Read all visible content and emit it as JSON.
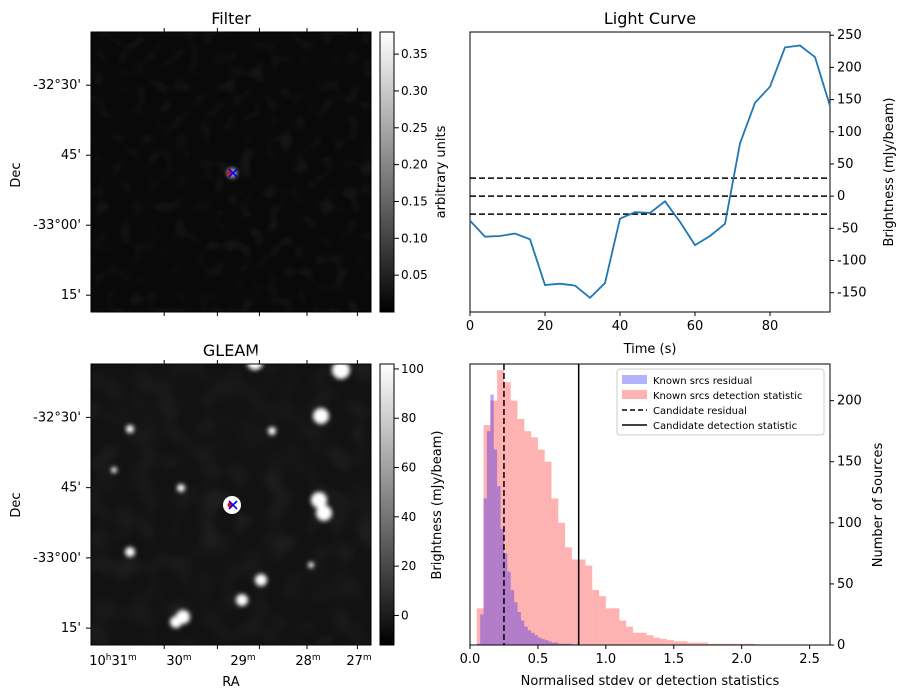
{
  "chart_data": [
    {
      "type": "heatmap",
      "title": "Filter",
      "ylabel": "Dec",
      "xlabel": "",
      "dec_ticks": [
        "-32°30'",
        "45'",
        "-33°00'",
        "15'"
      ],
      "colorbar": {
        "label": "arbitrary units",
        "ticks": [
          0.05,
          0.1,
          0.15,
          0.2,
          0.25,
          0.3,
          0.35
        ],
        "tick_labels": [
          "0.05",
          "0.10",
          "0.15",
          "0.20",
          "0.25",
          "0.30",
          "0.35"
        ],
        "range": [
          0.0,
          0.38
        ]
      },
      "markers": [
        "red-dot",
        "blue-x"
      ]
    },
    {
      "type": "line",
      "title": "Light Curve",
      "xlabel": "Time (s)",
      "ylabel": "Brightness (mJy/beam)",
      "xlim": [
        0,
        96
      ],
      "ylim": [
        -180,
        255
      ],
      "xticks": [
        0,
        20,
        40,
        60,
        80
      ],
      "yticks": [
        -150,
        -100,
        -50,
        0,
        50,
        100,
        150,
        200,
        250
      ],
      "series": [
        {
          "x": [
            0,
            4,
            8,
            12,
            16,
            20,
            24,
            28,
            32,
            36,
            40,
            44,
            48,
            52,
            56,
            60,
            64,
            68,
            72,
            76,
            80,
            84,
            88,
            92,
            96
          ],
          "y": [
            -38,
            -63,
            -62,
            -58,
            -67,
            -138,
            -136,
            -139,
            -158,
            -135,
            -35,
            -25,
            -26,
            -8,
            -40,
            -76,
            -62,
            -43,
            82,
            145,
            170,
            231,
            234,
            216,
            140
          ],
          "color": "#1f77b4"
        }
      ],
      "hlines": [
        28,
        0,
        -28
      ]
    },
    {
      "type": "heatmap",
      "title": "GLEAM",
      "ylabel": "Dec",
      "xlabel": "RA",
      "dec_ticks": [
        "-32°30'",
        "45'",
        "-33°00'",
        "15'"
      ],
      "ra_ticks": [
        {
          "h": "10",
          "m": "31"
        },
        {
          "h": "",
          "m": "30"
        },
        {
          "h": "",
          "m": "29"
        },
        {
          "h": "",
          "m": "28"
        },
        {
          "h": "",
          "m": "27"
        }
      ],
      "ra_hour_unit": "h",
      "ra_min_unit": "m",
      "colorbar": {
        "label": "Brightness (mJy/beam)",
        "ticks": [
          0,
          20,
          40,
          60,
          80,
          100
        ],
        "tick_labels": [
          "0",
          "20",
          "40",
          "60",
          "80",
          "100"
        ],
        "range": [
          -12,
          102
        ]
      },
      "markers": [
        "red-dot",
        "blue-x"
      ]
    },
    {
      "type": "bar",
      "subtype": "histogram",
      "xlabel": "Normalised stdev or detection statistics",
      "ylabel": "Number of Sources",
      "xlim": [
        0,
        2.65
      ],
      "ylim": [
        0,
        230
      ],
      "xticks": [
        0.0,
        0.5,
        1.0,
        1.5,
        2.0,
        2.5
      ],
      "xtick_labels": [
        "0.0",
        "0.5",
        "1.0",
        "1.5",
        "2.0",
        "2.5"
      ],
      "yticks": [
        0,
        50,
        100,
        150,
        200
      ],
      "bin_start": 0.0,
      "bin_width": 0.05,
      "series": [
        {
          "name": "Known srcs residual",
          "color": "#0000ff",
          "alpha": 0.3,
          "bin_width": 0.025,
          "values": [
            0,
            0,
            1,
            25,
            120,
            175,
            205,
            160,
            130,
            95,
            75,
            60,
            45,
            35,
            27,
            20,
            15,
            12,
            10,
            8,
            6,
            5,
            4,
            3,
            2,
            2,
            1,
            1,
            1,
            1,
            0,
            0,
            0,
            0,
            0,
            0,
            0,
            0,
            0,
            0
          ]
        },
        {
          "name": "Known srcs detection statistic",
          "color": "#ff0000",
          "alpha": 0.3,
          "bin_width": 0.05,
          "values": [
            0,
            30,
            180,
            200,
            225,
            215,
            200,
            185,
            175,
            170,
            160,
            150,
            120,
            100,
            80,
            70,
            70,
            65,
            45,
            40,
            30,
            30,
            20,
            15,
            10,
            10,
            8,
            6,
            5,
            4,
            3,
            3,
            2,
            2,
            2,
            1,
            1,
            1,
            1,
            1,
            1,
            1,
            0,
            0,
            0,
            0,
            0,
            0,
            0,
            0,
            0,
            0
          ]
        }
      ],
      "vlines": [
        {
          "name": "Candidate residual",
          "x": 0.25,
          "style": "dashed"
        },
        {
          "name": "Candidate detection statistic",
          "x": 0.8,
          "style": "solid"
        }
      ],
      "legend": "top-right"
    }
  ]
}
